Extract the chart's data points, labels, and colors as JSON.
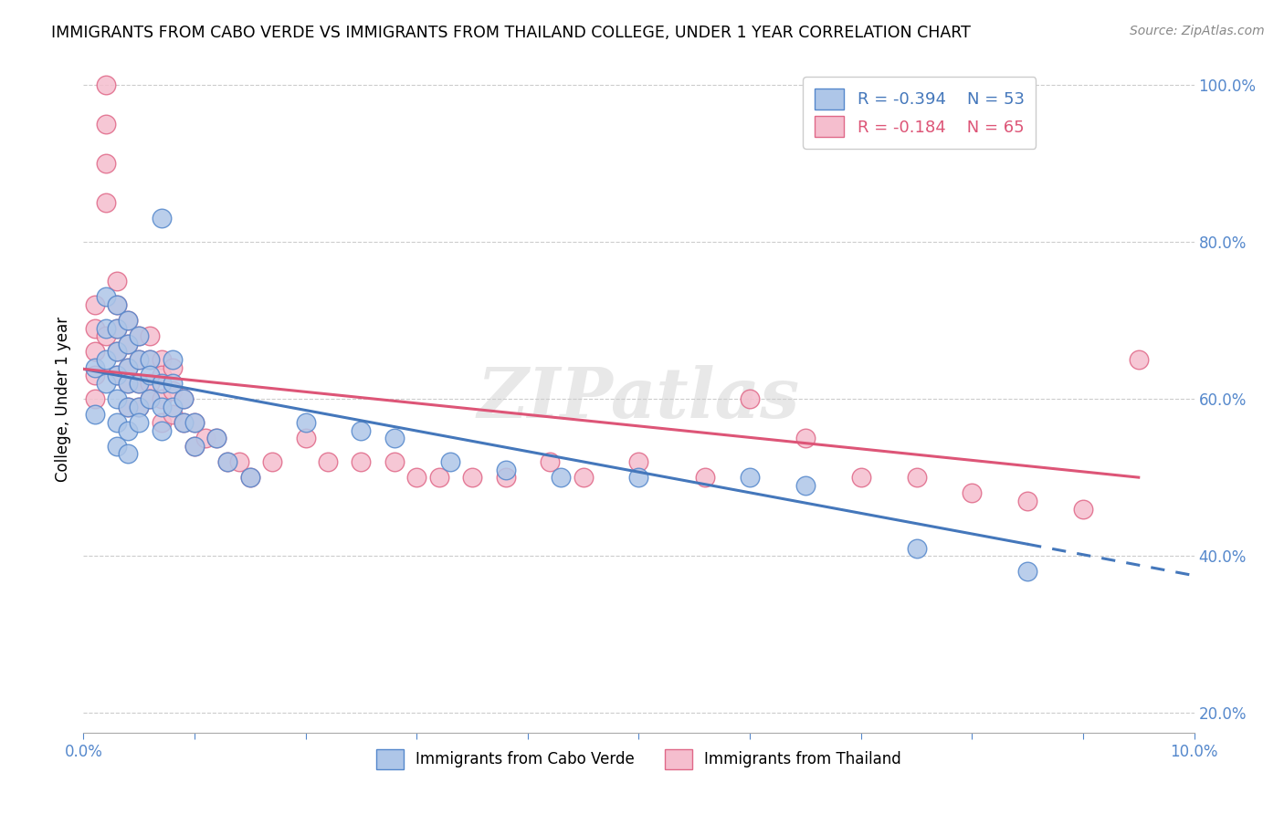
{
  "title": "IMMIGRANTS FROM CABO VERDE VS IMMIGRANTS FROM THAILAND COLLEGE, UNDER 1 YEAR CORRELATION CHART",
  "source": "Source: ZipAtlas.com",
  "ylabel": "College, Under 1 year",
  "ylabel_right_labels": [
    "20.0%",
    "40.0%",
    "60.0%",
    "80.0%",
    "100.0%"
  ],
  "ylabel_right_values": [
    0.2,
    0.4,
    0.6,
    0.8,
    1.0
  ],
  "legend_cabo_r": "R = -0.394",
  "legend_cabo_n": "N = 53",
  "legend_thai_r": "R = -0.184",
  "legend_thai_n": "N = 65",
  "cabo_color": "#aec6e8",
  "cabo_edge_color": "#5588cc",
  "thai_color": "#f5bece",
  "thai_edge_color": "#e06888",
  "cabo_line_color": "#4477bb",
  "thai_line_color": "#dd5577",
  "cabo_verde_x": [
    0.001,
    0.001,
    0.002,
    0.002,
    0.002,
    0.002,
    0.003,
    0.003,
    0.003,
    0.003,
    0.003,
    0.003,
    0.003,
    0.004,
    0.004,
    0.004,
    0.004,
    0.004,
    0.004,
    0.004,
    0.005,
    0.005,
    0.005,
    0.005,
    0.005,
    0.006,
    0.006,
    0.006,
    0.007,
    0.007,
    0.007,
    0.007,
    0.008,
    0.008,
    0.008,
    0.009,
    0.009,
    0.01,
    0.01,
    0.012,
    0.013,
    0.015,
    0.02,
    0.025,
    0.028,
    0.033,
    0.038,
    0.043,
    0.05,
    0.06,
    0.065,
    0.075,
    0.085
  ],
  "cabo_verde_y": [
    0.64,
    0.58,
    0.73,
    0.69,
    0.65,
    0.62,
    0.72,
    0.69,
    0.66,
    0.63,
    0.6,
    0.57,
    0.54,
    0.7,
    0.67,
    0.64,
    0.62,
    0.59,
    0.56,
    0.53,
    0.68,
    0.65,
    0.62,
    0.59,
    0.57,
    0.65,
    0.63,
    0.6,
    0.83,
    0.62,
    0.59,
    0.56,
    0.65,
    0.62,
    0.59,
    0.6,
    0.57,
    0.57,
    0.54,
    0.55,
    0.52,
    0.5,
    0.57,
    0.56,
    0.55,
    0.52,
    0.51,
    0.5,
    0.5,
    0.5,
    0.49,
    0.41,
    0.38
  ],
  "thailand_x": [
    0.001,
    0.001,
    0.001,
    0.001,
    0.001,
    0.002,
    0.002,
    0.002,
    0.002,
    0.002,
    0.003,
    0.003,
    0.003,
    0.003,
    0.003,
    0.004,
    0.004,
    0.004,
    0.004,
    0.004,
    0.005,
    0.005,
    0.005,
    0.005,
    0.006,
    0.006,
    0.006,
    0.006,
    0.007,
    0.007,
    0.007,
    0.007,
    0.008,
    0.008,
    0.008,
    0.009,
    0.009,
    0.01,
    0.01,
    0.011,
    0.012,
    0.013,
    0.014,
    0.015,
    0.017,
    0.02,
    0.022,
    0.025,
    0.028,
    0.03,
    0.032,
    0.035,
    0.038,
    0.042,
    0.045,
    0.05,
    0.056,
    0.06,
    0.065,
    0.07,
    0.075,
    0.08,
    0.085,
    0.09,
    0.095
  ],
  "thailand_y": [
    0.72,
    0.69,
    0.66,
    0.63,
    0.6,
    1.0,
    0.95,
    0.9,
    0.85,
    0.68,
    0.75,
    0.72,
    0.69,
    0.66,
    0.63,
    0.7,
    0.67,
    0.64,
    0.62,
    0.59,
    0.68,
    0.65,
    0.62,
    0.59,
    0.68,
    0.65,
    0.62,
    0.6,
    0.65,
    0.63,
    0.6,
    0.57,
    0.64,
    0.61,
    0.58,
    0.6,
    0.57,
    0.57,
    0.54,
    0.55,
    0.55,
    0.52,
    0.52,
    0.5,
    0.52,
    0.55,
    0.52,
    0.52,
    0.52,
    0.5,
    0.5,
    0.5,
    0.5,
    0.52,
    0.5,
    0.52,
    0.5,
    0.6,
    0.55,
    0.5,
    0.5,
    0.48,
    0.47,
    0.46,
    0.65
  ],
  "xlim": [
    0.0,
    0.1
  ],
  "ylim": [
    0.175,
    1.025
  ],
  "watermark": "ZIPatlas",
  "cabo_trendline_x0": 0.0,
  "cabo_trendline_x1": 0.085,
  "cabo_trendline_y0": 0.638,
  "cabo_trendline_y1": 0.415,
  "cabo_trendline_ext_x0": 0.085,
  "cabo_trendline_ext_x1": 0.1,
  "cabo_trendline_ext_y0": 0.415,
  "cabo_trendline_ext_y1": 0.375,
  "thai_trendline_x0": 0.0,
  "thai_trendline_x1": 0.095,
  "thai_trendline_y0": 0.638,
  "thai_trendline_y1": 0.5,
  "legend_cabo_label": "Immigrants from Cabo Verde",
  "legend_thai_label": "Immigrants from Thailand"
}
